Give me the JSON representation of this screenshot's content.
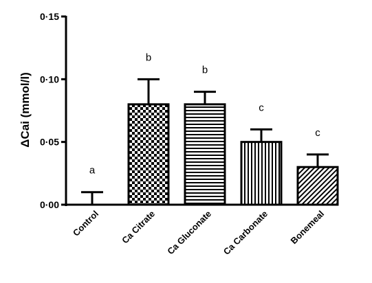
{
  "chart_data": {
    "type": "bar",
    "ylabel": "ΔCai (mmol/l)",
    "ylim": [
      0,
      0.15
    ],
    "yticks": [
      0,
      0.05,
      0.1,
      0.15
    ],
    "ytick_labels": [
      "0·00",
      "0·05",
      "0·10",
      "0·15"
    ],
    "categories": [
      "Control",
      "Ca Citrate",
      "Ca Gluconate",
      "Ca Carbonate",
      "Bonemeal"
    ],
    "values": [
      0.0,
      0.08,
      0.08,
      0.05,
      0.03
    ],
    "error_upper": [
      0.01,
      0.1,
      0.09,
      0.06,
      0.04
    ],
    "significance_labels": [
      "a",
      "b",
      "b",
      "c",
      "c"
    ],
    "patterns": [
      "none",
      "checkerboard",
      "horizontal-lines",
      "vertical-lines",
      "diagonal-lines"
    ],
    "grid": false,
    "legend": "none"
  }
}
